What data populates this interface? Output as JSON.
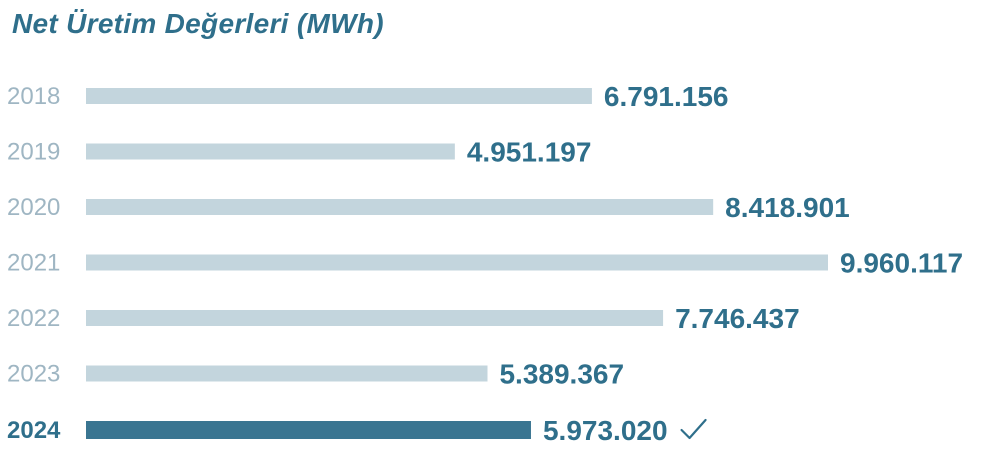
{
  "chart_data": {
    "type": "bar",
    "orientation": "horizontal",
    "title": "Net Üretim Değerleri (MWh)",
    "categories": [
      "2018",
      "2019",
      "2020",
      "2021",
      "2022",
      "2023",
      "2024"
    ],
    "values": [
      6791156,
      4951197,
      8418901,
      9960117,
      7746437,
      5389367,
      5973020
    ],
    "value_labels": [
      "6.791.156",
      "4.951.197",
      "8.418.901",
      "9.960.117",
      "7.746.437",
      "5.389.367",
      "5.973.020"
    ],
    "highlight_category": "2024",
    "highlight_marker": "check-icon",
    "xlim": [
      0,
      9960117
    ],
    "grid": false,
    "colors": {
      "bar": "#c3d5dd",
      "bar_highlight": "#3a7591",
      "title": "#2f6f8b",
      "value_text": "#2f6f8b",
      "year_text": "#9fb6c3"
    }
  }
}
